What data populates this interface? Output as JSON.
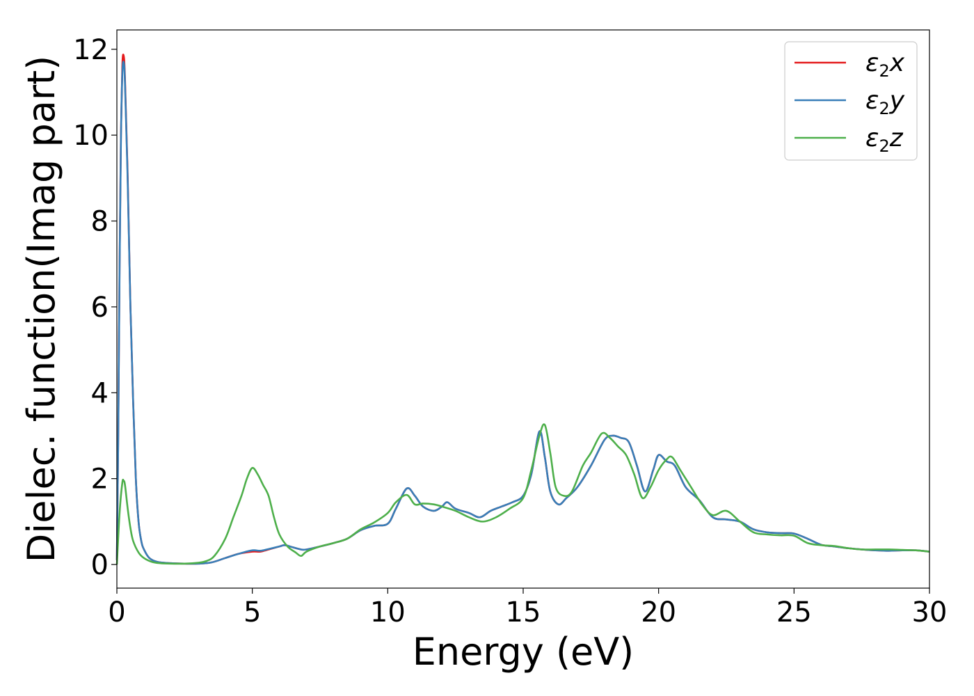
{
  "chart_data": {
    "type": "line",
    "title": "",
    "xlabel": "Energy (eV)",
    "ylabel": "Dielec. function(Imag part)",
    "xlim": [
      0,
      30
    ],
    "ylim": [
      -0.55,
      12.45
    ],
    "xticks": [
      0,
      5,
      10,
      15,
      20,
      25,
      30
    ],
    "yticks": [
      0,
      2,
      4,
      6,
      8,
      10,
      12
    ],
    "grid": false,
    "legend_position": "top-right",
    "series": [
      {
        "name": "ε₂x",
        "legend_main": "ε",
        "legend_sub": "2",
        "legend_tail": "x",
        "color": "#e41a1c",
        "x": [
          0,
          0.05,
          0.1,
          0.15,
          0.2,
          0.25,
          0.3,
          0.4,
          0.5,
          0.6,
          0.7,
          0.8,
          0.9,
          1.0,
          1.2,
          1.5,
          2,
          2.5,
          3,
          3.5,
          4,
          4.5,
          5,
          5.3,
          5.6,
          6,
          6.2,
          6.5,
          6.8,
          7,
          7.5,
          8,
          8.5,
          9,
          9.5,
          10,
          10.3,
          10.7,
          11,
          11.3,
          11.7,
          12,
          12.2,
          12.5,
          13,
          13.4,
          13.8,
          14.2,
          14.6,
          15,
          15.3,
          15.6,
          15.8,
          16,
          16.3,
          16.6,
          17,
          17.5,
          18,
          18.3,
          18.6,
          18.9,
          19.2,
          19.5,
          19.8,
          20,
          20.3,
          20.6,
          21,
          21.5,
          22,
          22.5,
          23,
          23.5,
          24,
          24.5,
          25,
          25.5,
          26,
          26.5,
          27,
          27.5,
          28,
          28.5,
          29,
          29.5,
          30
        ],
        "y": [
          0.1,
          3.0,
          7.0,
          10.0,
          11.6,
          11.85,
          11.3,
          9.0,
          6.0,
          3.8,
          2.0,
          1.0,
          0.55,
          0.35,
          0.15,
          0.06,
          0.03,
          0.02,
          0.02,
          0.05,
          0.15,
          0.25,
          0.3,
          0.3,
          0.35,
          0.42,
          0.45,
          0.4,
          0.35,
          0.35,
          0.42,
          0.5,
          0.6,
          0.8,
          0.9,
          0.95,
          1.3,
          1.77,
          1.6,
          1.35,
          1.25,
          1.35,
          1.45,
          1.3,
          1.2,
          1.1,
          1.25,
          1.35,
          1.45,
          1.6,
          2.1,
          3.1,
          2.5,
          1.7,
          1.4,
          1.55,
          1.8,
          2.3,
          2.9,
          3.0,
          2.95,
          2.85,
          2.3,
          1.7,
          2.2,
          2.55,
          2.4,
          2.3,
          1.8,
          1.5,
          1.1,
          1.05,
          1.0,
          0.82,
          0.75,
          0.73,
          0.72,
          0.6,
          0.46,
          0.42,
          0.38,
          0.35,
          0.33,
          0.32,
          0.33,
          0.33,
          0.3
        ]
      },
      {
        "name": "ε₂y",
        "legend_main": "ε",
        "legend_sub": "2",
        "legend_tail": "y",
        "color": "#377eb8",
        "x": [
          0,
          0.05,
          0.1,
          0.15,
          0.2,
          0.25,
          0.3,
          0.4,
          0.5,
          0.6,
          0.7,
          0.8,
          0.9,
          1.0,
          1.2,
          1.5,
          2,
          2.5,
          3,
          3.5,
          4,
          4.5,
          5,
          5.3,
          5.6,
          6,
          6.2,
          6.5,
          6.8,
          7,
          7.5,
          8,
          8.5,
          9,
          9.5,
          10,
          10.3,
          10.7,
          11,
          11.3,
          11.7,
          12,
          12.2,
          12.5,
          13,
          13.4,
          13.8,
          14.2,
          14.6,
          15,
          15.3,
          15.6,
          15.8,
          16,
          16.3,
          16.6,
          17,
          17.5,
          18,
          18.3,
          18.6,
          18.9,
          19.2,
          19.5,
          19.8,
          20,
          20.3,
          20.6,
          21,
          21.5,
          22,
          22.5,
          23,
          23.5,
          24,
          24.5,
          25,
          25.5,
          26,
          26.5,
          27,
          27.5,
          28,
          28.5,
          29,
          29.5,
          30
        ],
        "y": [
          0.1,
          3.0,
          6.9,
          9.9,
          11.4,
          11.7,
          11.2,
          8.9,
          6.0,
          3.8,
          2.0,
          1.0,
          0.55,
          0.35,
          0.15,
          0.06,
          0.03,
          0.02,
          0.02,
          0.05,
          0.15,
          0.25,
          0.33,
          0.32,
          0.36,
          0.42,
          0.45,
          0.4,
          0.35,
          0.35,
          0.42,
          0.5,
          0.6,
          0.8,
          0.9,
          0.95,
          1.3,
          1.77,
          1.6,
          1.35,
          1.25,
          1.35,
          1.45,
          1.3,
          1.2,
          1.1,
          1.25,
          1.35,
          1.45,
          1.6,
          2.1,
          3.1,
          2.5,
          1.7,
          1.4,
          1.55,
          1.8,
          2.3,
          2.9,
          3.0,
          2.95,
          2.85,
          2.3,
          1.7,
          2.2,
          2.55,
          2.4,
          2.3,
          1.8,
          1.5,
          1.1,
          1.05,
          1.0,
          0.82,
          0.75,
          0.73,
          0.72,
          0.6,
          0.46,
          0.42,
          0.38,
          0.35,
          0.33,
          0.32,
          0.33,
          0.33,
          0.3
        ]
      },
      {
        "name": "ε₂z",
        "legend_main": "ε",
        "legend_sub": "2",
        "legend_tail": "z",
        "color": "#4daf4a",
        "x": [
          0,
          0.1,
          0.2,
          0.25,
          0.3,
          0.4,
          0.5,
          0.6,
          0.8,
          1.0,
          1.3,
          1.6,
          2,
          2.5,
          3,
          3.3,
          3.6,
          4,
          4.3,
          4.6,
          4.8,
          5,
          5.2,
          5.4,
          5.6,
          5.8,
          6,
          6.3,
          6.6,
          6.8,
          7,
          7.5,
          8,
          8.5,
          9,
          9.5,
          10,
          10.3,
          10.7,
          11,
          11.3,
          11.7,
          12,
          12.5,
          13,
          13.5,
          14,
          14.5,
          15,
          15.3,
          15.6,
          15.8,
          16,
          16.2,
          16.5,
          16.8,
          17.2,
          17.5,
          17.9,
          18.2,
          18.5,
          18.8,
          19.1,
          19.4,
          19.7,
          20,
          20.3,
          20.5,
          20.8,
          21.2,
          21.6,
          22,
          22.5,
          23,
          23.5,
          24,
          24.5,
          25,
          25.5,
          26,
          26.5,
          27,
          27.5,
          28,
          28.5,
          29,
          29.5,
          30
        ],
        "y": [
          0.0,
          1.2,
          1.9,
          1.95,
          1.85,
          1.3,
          0.85,
          0.55,
          0.28,
          0.15,
          0.06,
          0.03,
          0.02,
          0.02,
          0.04,
          0.08,
          0.2,
          0.6,
          1.1,
          1.6,
          2.0,
          2.25,
          2.1,
          1.85,
          1.6,
          1.1,
          0.7,
          0.42,
          0.28,
          0.2,
          0.3,
          0.42,
          0.5,
          0.6,
          0.82,
          0.98,
          1.2,
          1.45,
          1.62,
          1.4,
          1.42,
          1.4,
          1.35,
          1.25,
          1.1,
          1.0,
          1.1,
          1.3,
          1.55,
          2.2,
          3.0,
          3.25,
          2.6,
          1.8,
          1.6,
          1.7,
          2.3,
          2.6,
          3.05,
          2.95,
          2.75,
          2.55,
          2.1,
          1.55,
          1.8,
          2.2,
          2.45,
          2.5,
          2.2,
          1.8,
          1.4,
          1.15,
          1.25,
          1.0,
          0.75,
          0.7,
          0.68,
          0.67,
          0.5,
          0.45,
          0.43,
          0.38,
          0.35,
          0.35,
          0.35,
          0.34,
          0.33,
          0.3
        ]
      }
    ]
  }
}
